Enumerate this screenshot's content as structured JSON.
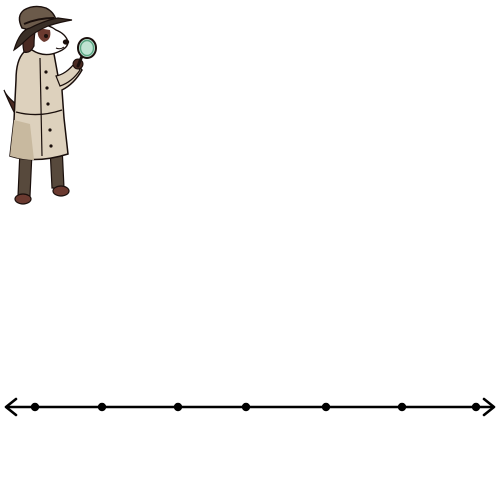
{
  "scene": {
    "illustration": "detective-dog-with-magnifying-glass",
    "background_color": "#ffffff"
  },
  "number_line": {
    "tick_count": 7,
    "has_left_arrow": true,
    "has_right_arrow": true,
    "tick_labels": [],
    "line_color": "#000000",
    "tick_color": "#000000"
  }
}
